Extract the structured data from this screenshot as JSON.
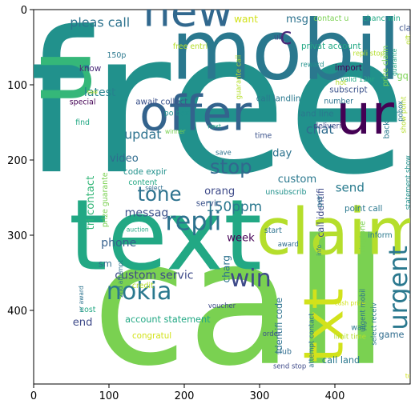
{
  "x_ticks": [
    "0",
    "100",
    "200",
    "300",
    "400"
  ],
  "y_ticks": [
    "0",
    "100",
    "200",
    "300",
    "400"
  ],
  "words": [
    {
      "t": "free",
      "c": "#21918c",
      "x": 240,
      "y": 215,
      "s": 260
    },
    {
      "t": "call",
      "c": "#7ad151",
      "x": 275,
      "y": 470,
      "s": 230
    },
    {
      "t": "text",
      "c": "#22a884",
      "x": 175,
      "y": 345,
      "s": 130
    },
    {
      "t": "mobil",
      "c": "#2a788e",
      "x": 335,
      "y": 92,
      "s": 110
    },
    {
      "t": "claim",
      "c": "#b5de2b",
      "x": 410,
      "y": 325,
      "s": 85
    },
    {
      "t": "offer",
      "c": "#33638d",
      "x": 215,
      "y": 160,
      "s": 64
    },
    {
      "t": "ur",
      "c": "#440154",
      "x": 440,
      "y": 165,
      "s": 74
    },
    {
      "t": "new",
      "c": "#31688e",
      "x": 205,
      "y": 22,
      "s": 58
    },
    {
      "t": "u",
      "c": "#35b779",
      "x": 75,
      "y": 90,
      "s": 120,
      "r": -90
    },
    {
      "t": "txt",
      "c": "#d2e21b",
      "x": 410,
      "y": 420,
      "s": 72,
      "r": -90
    },
    {
      "t": "repli",
      "c": "#2c728e",
      "x": 212,
      "y": 293,
      "s": 34
    },
    {
      "t": "nokia",
      "c": "#2a788e",
      "x": 140,
      "y": 385,
      "s": 32
    },
    {
      "t": "win",
      "c": "#3e4a89",
      "x": 288,
      "y": 368,
      "s": 32
    },
    {
      "t": "urgent",
      "c": "#2a788e",
      "x": 496,
      "y": 370,
      "s": 34,
      "r": -90
    },
    {
      "t": "stop",
      "c": "#31688e",
      "x": 262,
      "y": 218,
      "s": 26
    },
    {
      "t": "tone",
      "c": "#2c728e",
      "x": 167,
      "y": 254,
      "s": 26
    },
    {
      "t": "150ppm",
      "c": "#2a788e",
      "x": 266,
      "y": 268,
      "s": 18
    },
    {
      "t": "messag",
      "c": "#3b528b",
      "x": 150,
      "y": 275,
      "s": 15
    },
    {
      "t": "updat",
      "c": "#2c728e",
      "x": 145,
      "y": 172,
      "s": 17
    },
    {
      "t": "chat",
      "c": "#2f6c8e",
      "x": 380,
      "y": 165,
      "s": 17
    },
    {
      "t": "pleas call",
      "c": "#2c728e",
      "x": 88,
      "y": 23,
      "s": 17
    },
    {
      "t": "c",
      "c": "#482878",
      "x": 335,
      "y": 46,
      "s": 30
    },
    {
      "t": "latest",
      "c": "#26828e",
      "x": 88,
      "y": 115,
      "s": 15
    },
    {
      "t": "send",
      "c": "#297b8e",
      "x": 420,
      "y": 242,
      "s": 16
    },
    {
      "t": "phone",
      "c": "#35608d",
      "x": 113,
      "y": 315,
      "s": 15
    },
    {
      "t": "custom servic",
      "c": "#3e4a89",
      "x": 160,
      "y": 358,
      "s": 15
    },
    {
      "t": "video",
      "c": "#2f6c8e",
      "x": 120,
      "y": 202,
      "s": 14
    },
    {
      "t": "orang",
      "c": "#3e4a89",
      "x": 247,
      "y": 246,
      "s": 14
    },
    {
      "t": "day",
      "c": "#2c728e",
      "x": 330,
      "y": 195,
      "s": 14
    },
    {
      "t": "custom",
      "c": "#2a788e",
      "x": 350,
      "y": 230,
      "s": 14
    },
    {
      "t": "week",
      "c": "#440154",
      "x": 275,
      "y": 308,
      "s": 14
    },
    {
      "t": "end",
      "c": "#3e4a89",
      "x": 65,
      "y": 420,
      "s": 14
    },
    {
      "t": "account statement",
      "c": "#22a884",
      "x": 178,
      "y": 416,
      "s": 12
    },
    {
      "t": "want",
      "c": "#d2e21b",
      "x": 282,
      "y": 17,
      "s": 13
    },
    {
      "t": "msg",
      "c": "#2c728e",
      "x": 350,
      "y": 17,
      "s": 14
    },
    {
      "t": "sm",
      "c": "#2f6c8e",
      "x": 95,
      "y": 342,
      "s": 12
    },
    {
      "t": "charg",
      "c": "#2c728e",
      "x": 260,
      "y": 345,
      "s": 13,
      "r": -90
    },
    {
      "t": "congratul",
      "c": "#d2e21b",
      "x": 157,
      "y": 437,
      "s": 11
    },
    {
      "t": "call landlin",
      "c": "#2a788e",
      "x": 325,
      "y": 122,
      "s": 11
    },
    {
      "t": "land line",
      "c": "#2a788e",
      "x": 375,
      "y": 142,
      "s": 11
    },
    {
      "t": "tri contact",
      "c": "#35b779",
      "x": 80,
      "y": 257,
      "s": 14,
      "r": -90
    },
    {
      "t": "call identifi",
      "c": "#3e4a89",
      "x": 385,
      "y": 270,
      "s": 12,
      "r": -90
    },
    {
      "t": "identifi code",
      "c": "#2c728e",
      "x": 330,
      "y": 420,
      "s": 12,
      "r": -90
    },
    {
      "t": "call land",
      "c": "#2a788e",
      "x": 408,
      "y": 470,
      "s": 12
    },
    {
      "t": "game",
      "c": "#2f6c8e",
      "x": 475,
      "y": 436,
      "s": 12
    },
    {
      "t": "await collect",
      "c": "#3b528b",
      "x": 170,
      "y": 126,
      "s": 11
    },
    {
      "t": "po box",
      "c": "#21918c",
      "x": 190,
      "y": 141,
      "s": 10
    },
    {
      "t": "code expir",
      "c": "#21918c",
      "x": 148,
      "y": 219,
      "s": 11
    },
    {
      "t": "content",
      "c": "#22a884",
      "x": 145,
      "y": 233,
      "s": 10
    },
    {
      "t": "prize guarante",
      "c": "#7ad151",
      "x": 98,
      "y": 253,
      "s": 10,
      "r": -90
    },
    {
      "t": "servic",
      "c": "#3b528b",
      "x": 232,
      "y": 261,
      "s": 11
    },
    {
      "t": "unsubscrib",
      "c": "#21918c",
      "x": 335,
      "y": 246,
      "s": 10
    },
    {
      "t": "point call",
      "c": "#2a788e",
      "x": 438,
      "y": 268,
      "s": 11
    },
    {
      "t": "inform",
      "c": "#2a788e",
      "x": 460,
      "y": 303,
      "s": 10
    },
    {
      "t": "ringtone",
      "c": "#7ad151",
      "x": 440,
      "y": 302,
      "s": 10,
      "r": -90
    },
    {
      "t": "privat account",
      "c": "#22a884",
      "x": 395,
      "y": 52,
      "s": 11
    },
    {
      "t": "free entri",
      "c": "#b5de2b",
      "x": 208,
      "y": 52,
      "s": 10
    },
    {
      "t": "contact u",
      "c": "#7ad151",
      "x": 395,
      "y": 15,
      "s": 10
    },
    {
      "t": "chanc win",
      "c": "#22a884",
      "x": 462,
      "y": 15,
      "s": 10
    },
    {
      "t": "claim",
      "c": "#3b528b",
      "x": 500,
      "y": 28,
      "s": 11
    },
    {
      "t": "uk",
      "c": "#3e4a89",
      "x": 325,
      "y": 40,
      "s": 10
    },
    {
      "t": "150p",
      "c": "#2a788e",
      "x": 110,
      "y": 64,
      "s": 10
    },
    {
      "t": "know",
      "c": "#482878",
      "x": 75,
      "y": 82,
      "s": 11
    },
    {
      "t": "import",
      "c": "#440154",
      "x": 418,
      "y": 81,
      "s": 11
    },
    {
      "t": "subscript",
      "c": "#3b528b",
      "x": 418,
      "y": 110,
      "s": 11
    },
    {
      "t": "number",
      "c": "#2c728e",
      "x": 405,
      "y": 125,
      "s": 10
    },
    {
      "t": "special",
      "c": "#440154",
      "x": 65,
      "y": 126,
      "s": 10
    },
    {
      "t": "find",
      "c": "#22a884",
      "x": 65,
      "y": 153,
      "s": 10
    },
    {
      "t": "reward",
      "c": "#21918c",
      "x": 370,
      "y": 76,
      "s": 9
    },
    {
      "t": "valid 12hr",
      "c": "#22a884",
      "x": 430,
      "y": 96,
      "s": 9
    },
    {
      "t": "repli stop",
      "c": "#b5de2b",
      "x": 445,
      "y": 61,
      "s": 9
    },
    {
      "t": "prize claim",
      "c": "#7ad151",
      "x": 470,
      "y": 75,
      "s": 10,
      "r": -90
    },
    {
      "t": "hot",
      "c": "#b5de2b",
      "x": 408,
      "y": 100,
      "s": 9
    },
    {
      "t": "gq",
      "c": "#7ad151",
      "x": 490,
      "y": 92,
      "s": 12
    },
    {
      "t": "show point",
      "c": "#b5de2b",
      "x": 494,
      "y": 140,
      "s": 9,
      "r": -90
    },
    {
      "t": "back",
      "c": "#2a788e",
      "x": 472,
      "y": 160,
      "s": 10,
      "r": -90
    },
    {
      "t": "pobox",
      "c": "#2a788e",
      "x": 490,
      "y": 135,
      "s": 9,
      "r": -90
    },
    {
      "t": "deliveri",
      "c": "#3e4a89",
      "x": 390,
      "y": 158,
      "s": 10
    },
    {
      "t": "time",
      "c": "#3b528b",
      "x": 305,
      "y": 171,
      "s": 10
    },
    {
      "t": "guarante call",
      "c": "#b5de2b",
      "x": 275,
      "y": 90,
      "s": 9,
      "r": -90
    },
    {
      "t": "winner",
      "c": "#7ad151",
      "x": 188,
      "y": 165,
      "s": 8
    },
    {
      "t": "next",
      "c": "#22a884",
      "x": 240,
      "y": 158,
      "s": 8
    },
    {
      "t": "save",
      "c": "#2c728e",
      "x": 252,
      "y": 193,
      "s": 9
    },
    {
      "t": "select",
      "c": "#2f6c8e",
      "x": 160,
      "y": 240,
      "s": 8
    },
    {
      "t": "per",
      "c": "#2c728e",
      "x": 383,
      "y": 255,
      "s": 10,
      "r": -90
    },
    {
      "t": "start",
      "c": "#2c728e",
      "x": 318,
      "y": 297,
      "s": 10
    },
    {
      "t": "award",
      "c": "#2f6c8e",
      "x": 338,
      "y": 315,
      "s": 9
    },
    {
      "t": "info",
      "c": "#2a788e",
      "x": 382,
      "y": 320,
      "s": 8,
      "r": -90
    },
    {
      "t": "statement show",
      "c": "#21918c",
      "x": 500,
      "y": 230,
      "s": 9,
      "r": -90
    },
    {
      "t": "auction",
      "c": "#22a884",
      "x": 138,
      "y": 295,
      "s": 8
    },
    {
      "t": "credit",
      "c": "#b5de2b",
      "x": 145,
      "y": 370,
      "s": 10
    },
    {
      "t": "2nd attempt",
      "c": "#2c728e",
      "x": 118,
      "y": 358,
      "s": 8,
      "r": -90
    },
    {
      "t": "ur award",
      "c": "#2c728e",
      "x": 66,
      "y": 385,
      "s": 8,
      "r": -90
    },
    {
      "t": "cost",
      "c": "#22a884",
      "x": 72,
      "y": 402,
      "s": 10
    },
    {
      "t": "voucher",
      "c": "#3e4a89",
      "x": 250,
      "y": 397,
      "s": 9
    },
    {
      "t": "order",
      "c": "#3b528b",
      "x": 316,
      "y": 434,
      "s": 9
    },
    {
      "t": "club",
      "c": "#2f6c8e",
      "x": 332,
      "y": 458,
      "s": 10
    },
    {
      "t": "send stop",
      "c": "#3e4a89",
      "x": 340,
      "y": 477,
      "s": 9
    },
    {
      "t": "attempt contact",
      "c": "#2c728e",
      "x": 372,
      "y": 440,
      "s": 9,
      "r": -90
    },
    {
      "t": "cash prize",
      "c": "#d2e21b",
      "x": 420,
      "y": 393,
      "s": 8
    },
    {
      "t": "limit time",
      "c": "#b5de2b",
      "x": 420,
      "y": 438,
      "s": 9
    },
    {
      "t": "wait",
      "c": "#2a788e",
      "x": 432,
      "y": 426,
      "s": 10
    },
    {
      "t": "urgent mobil",
      "c": "#2c728e",
      "x": 440,
      "y": 400,
      "s": 9,
      "r": -90
    },
    {
      "t": "select receiv",
      "c": "#2a788e",
      "x": 455,
      "y": 418,
      "s": 9,
      "r": -90
    },
    {
      "t": "top",
      "c": "#d2e21b",
      "x": 500,
      "y": 490,
      "s": 8
    },
    {
      "t": "gift",
      "c": "#b5de2b",
      "x": 500,
      "y": 40,
      "s": 8,
      "r": -90
    },
    {
      "t": "see",
      "c": "#b5de2b",
      "x": 78,
      "y": 112,
      "s": 8
    },
    {
      "t": "guarante",
      "c": "#22a884",
      "x": 482,
      "y": 70,
      "s": 8,
      "r": -90
    }
  ]
}
